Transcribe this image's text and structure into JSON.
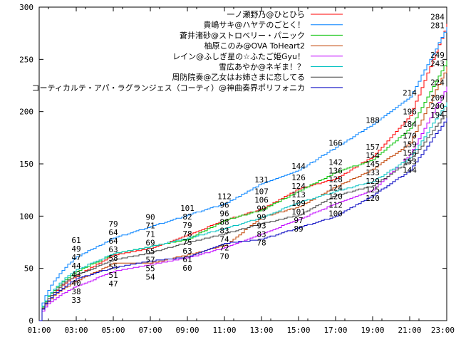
{
  "chart_data": {
    "type": "line",
    "title": "",
    "xlabel": "",
    "ylabel": "",
    "x": [
      "01:00",
      "03:00",
      "05:00",
      "07:00",
      "09:00",
      "11:00",
      "13:00",
      "15:00",
      "17:00",
      "19:00",
      "21:00",
      "23:00"
    ],
    "xticks": [
      "01:00",
      "03:00",
      "05:00",
      "07:00",
      "09:00",
      "11:00",
      "13:00",
      "15:00",
      "17:00",
      "19:00",
      "21:00",
      "23:00"
    ],
    "yticks": [
      0,
      50,
      100,
      150,
      200,
      250,
      300
    ],
    "ylim": [
      0,
      300
    ],
    "grid": false,
    "legend": "top-right",
    "series": [
      {
        "name": "一ノ瀬野乃@ひとひら",
        "color": "#ff0000",
        "values": [
          0,
          43,
          63,
          69,
          82,
          96,
          107,
          126,
          136,
          157,
          196,
          284
        ]
      },
      {
        "name": "貴嶋サキ@ハヤテのごとく！",
        "color": "#0080ff",
        "values": [
          0,
          61,
          79,
          90,
          101,
          112,
          131,
          144,
          166,
          188,
          214,
          281
        ]
      },
      {
        "name": "蒼井渚砂@ストロベリー・パニック",
        "color": "#00c000",
        "values": [
          0,
          47,
          64,
          71,
          78,
          96,
          106,
          124,
          142,
          154,
          184,
          249
        ]
      },
      {
        "name": "柚原このみ@OVA ToHeart2",
        "color": "#c04000",
        "values": [
          0,
          38,
          55,
          55,
          63,
          72,
          99,
          109,
          128,
          145,
          170,
          243
        ]
      },
      {
        "name": "レイン@ふしぎ星の☆ふたご姫Gyu！",
        "color": "#c000ff",
        "values": [
          0,
          33,
          47,
          54,
          60,
          70,
          83,
          97,
          112,
          125,
          159,
          224
        ]
      },
      {
        "name": "雪広あやか@ネギま！？",
        "color": "#00c0c0",
        "values": [
          0,
          49,
          64,
          71,
          79,
          88,
          99,
          113,
          124,
          133,
          156,
          209
        ]
      },
      {
        "name": "周防院奏@乙女はお姉さまに恋してる",
        "color": "#404040",
        "values": [
          0,
          44,
          58,
          65,
          75,
          83,
          93,
          101,
          120,
          129,
          153,
          200
        ]
      },
      {
        "name": "コーティカルテ・アパ・ラグランジェス（コーティ）@神曲奏界ポリフォニカ",
        "color": "#0000c0",
        "values": [
          0,
          40,
          51,
          57,
          61,
          74,
          78,
          89,
          100,
          120,
          144,
          194
        ]
      }
    ]
  }
}
